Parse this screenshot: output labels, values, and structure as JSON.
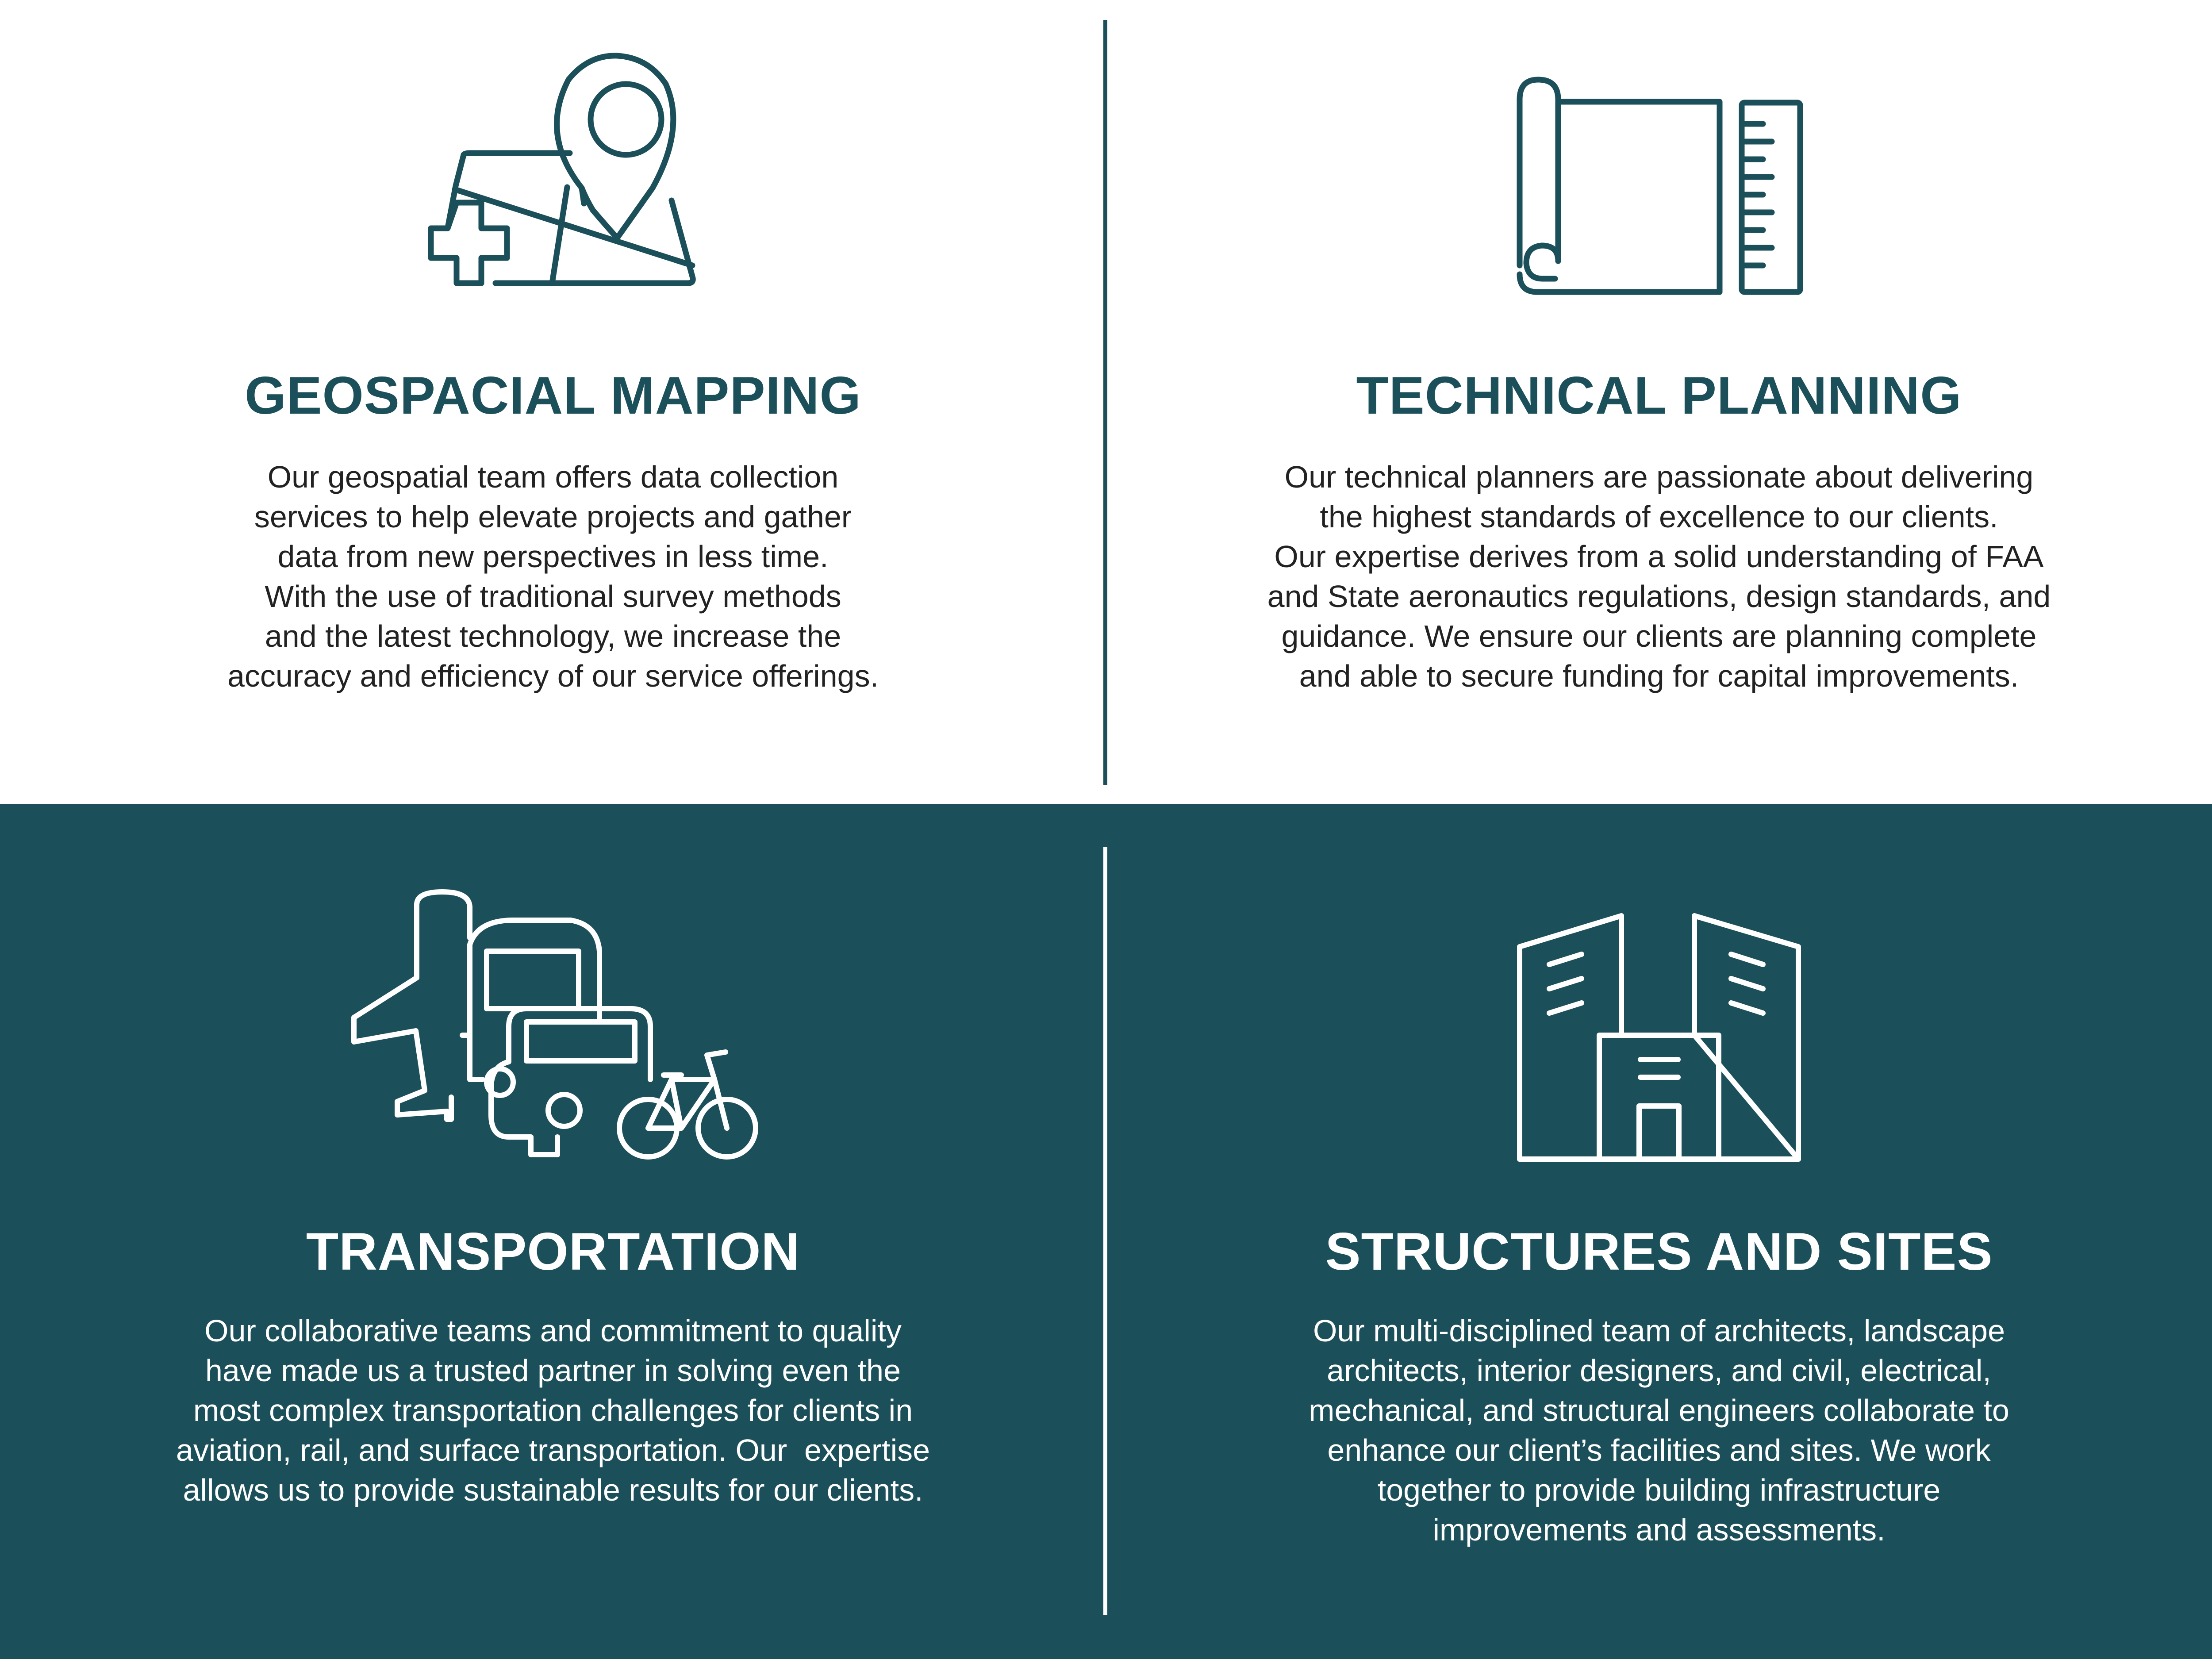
{
  "colors": {
    "teal": "#1b4f5a",
    "white": "#ffffff",
    "body_text": "#222222"
  },
  "sections": [
    {
      "icon": "map-pin-plus-icon",
      "title": "GEOSPACIAL MAPPING",
      "lines": [
        "Our geospatial team offers data collection",
        "services to help elevate projects and gather",
        "data from new perspectives in less time.",
        "With the use of traditional survey methods",
        "and the latest technology, we increase the",
        "accuracy and efficiency of our service offerings."
      ]
    },
    {
      "icon": "blueprint-ruler-icon",
      "title": "TECHNICAL PLANNING",
      "lines": [
        "Our technical planners are passionate about delivering",
        "the highest standards of excellence to our clients.",
        "Our expertise derives from a solid understanding of FAA",
        "and State aeronautics regulations, design standards, and",
        "guidance. We ensure our clients are planning complete",
        "and able to secure funding for capital improvements."
      ]
    },
    {
      "icon": "transportation-vehicles-icon",
      "title": "TRANSPORTATION",
      "lines": [
        "Our collaborative teams and commitment to quality",
        "have made us a trusted partner in solving even the",
        "most complex transportation challenges for clients in",
        "aviation, rail, and surface transportation. Our  expertise",
        "allows us to provide sustainable results for our clients."
      ]
    },
    {
      "icon": "buildings-icon",
      "title": "STRUCTURES AND SITES",
      "lines": [
        "Our multi-disciplined team of architects, landscape",
        "architects, interior designers, and civil, electrical,",
        "mechanical, and structural engineers collaborate to",
        "enhance our client’s facilities and sites. We work",
        "together to provide building infrastructure",
        "improvements and assessments."
      ]
    }
  ]
}
